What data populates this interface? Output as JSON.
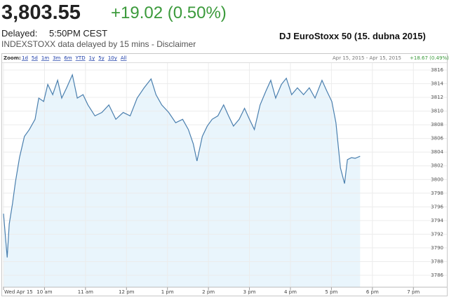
{
  "header": {
    "price": "3,803.55",
    "change": "+19.02 (0.50%)",
    "delayed_label": "Delayed:",
    "delayed_time": "5:50PM CEST",
    "source_note": "INDEXSTOXX data delayed by 15 mins - Disclaimer",
    "caption": "DJ EuroStoxx 50 (15. dubna 2015)"
  },
  "toolbar": {
    "zoom_label": "Zoom:",
    "zoom_options": [
      "1d",
      "5d",
      "1m",
      "3m",
      "6m",
      "YTD",
      "1y",
      "5y",
      "10y",
      "All"
    ],
    "date_range": "Apr 15, 2015 - Apr 15, 2015",
    "range_change": "+18.67 (0.49%)"
  },
  "chart_data": {
    "type": "line",
    "color": "#4a7fae",
    "fill": "#e9f5fc",
    "grid": true,
    "x": [
      9.0,
      9.09,
      9.14,
      9.22,
      9.29,
      9.39,
      9.51,
      9.63,
      9.77,
      9.86,
      9.98,
      10.08,
      10.2,
      10.32,
      10.42,
      10.54,
      10.68,
      10.8,
      10.94,
      11.06,
      11.23,
      11.4,
      11.57,
      11.74,
      11.92,
      12.09,
      12.26,
      12.43,
      12.6,
      12.72,
      12.86,
      13.03,
      13.2,
      13.37,
      13.51,
      13.63,
      13.72,
      13.85,
      13.97,
      14.09,
      14.23,
      14.37,
      14.49,
      14.61,
      14.75,
      14.88,
      15.0,
      15.12,
      15.26,
      15.4,
      15.52,
      15.64,
      15.78,
      15.9,
      16.03,
      16.17,
      16.32,
      16.46,
      16.6,
      16.77,
      16.89,
      17.01,
      17.11,
      17.22,
      17.32,
      17.39,
      17.49,
      17.58,
      17.7
    ],
    "values": [
      3795.0,
      3788.6,
      3793.5,
      3796.5,
      3799.6,
      3803.2,
      3806.3,
      3807.3,
      3808.8,
      3811.9,
      3811.4,
      3813.9,
      3812.4,
      3814.5,
      3811.9,
      3813.4,
      3815.3,
      3811.9,
      3812.4,
      3810.9,
      3809.3,
      3809.8,
      3810.9,
      3808.8,
      3809.8,
      3809.3,
      3811.9,
      3813.4,
      3814.7,
      3812.4,
      3810.9,
      3809.8,
      3808.3,
      3808.8,
      3807.3,
      3805.2,
      3802.7,
      3806.3,
      3807.8,
      3808.8,
      3809.3,
      3810.9,
      3809.3,
      3807.8,
      3808.8,
      3810.4,
      3808.8,
      3807.3,
      3810.9,
      3812.9,
      3814.5,
      3811.9,
      3813.9,
      3814.8,
      3812.4,
      3813.4,
      3812.4,
      3813.4,
      3811.9,
      3814.5,
      3812.9,
      3811.4,
      3808.3,
      3801.7,
      3799.4,
      3802.9,
      3803.2,
      3803.1,
      3803.4
    ],
    "xlim": [
      9,
      19.8
    ],
    "xticks": [
      {
        "value": 9,
        "label": "Wed Apr 15"
      },
      {
        "value": 10,
        "label": "10 am"
      },
      {
        "value": 11,
        "label": "11 am"
      },
      {
        "value": 12,
        "label": "12 pm"
      },
      {
        "value": 13,
        "label": "1 pm"
      },
      {
        "value": 14,
        "label": "2 pm"
      },
      {
        "value": 15,
        "label": "3 pm"
      },
      {
        "value": 16,
        "label": "4 pm"
      },
      {
        "value": 17,
        "label": "5 pm"
      },
      {
        "value": 18,
        "label": "6 pm"
      },
      {
        "value": 19,
        "label": "7 pm"
      }
    ],
    "ylim": [
      3784.26,
      3817.02
    ],
    "yticks": [
      3786,
      3788,
      3790,
      3792,
      3794,
      3796,
      3798,
      3800,
      3802,
      3804,
      3806,
      3808,
      3810,
      3812,
      3814,
      3816
    ]
  }
}
